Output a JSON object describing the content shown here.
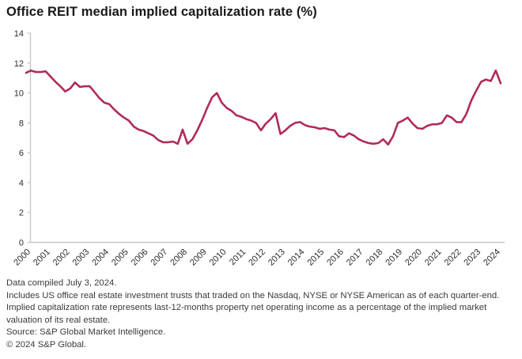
{
  "title": "Office REIT median implied capitalization rate (%)",
  "colors": {
    "line": "#b02a5c",
    "axis": "#c6c6c6",
    "tick_label": "#2d2d2d",
    "title_text": "#191919",
    "footnote_text": "#3a3a3a"
  },
  "footnotes": [
    "Data compiled July 3, 2024.",
    "Includes US office real estate investment trusts that traded on the Nasdaq, NYSE or NYSE American as of each quarter-end.",
    "Implied capitalization rate represents last-12-months property net operating income as a percentage of the implied market valuation of its real estate.",
    "Source: S&P Global Market Intelligence.",
    "© 2024 S&P Global."
  ],
  "chart_data": {
    "type": "line",
    "title": "Office REIT median implied capitalization rate (%)",
    "xlabel": "",
    "ylabel": "",
    "ylim": [
      0,
      14
    ],
    "y_ticks": [
      0,
      2,
      4,
      6,
      8,
      10,
      12,
      14
    ],
    "grid": false,
    "legend": "none",
    "x_tick_labels": [
      "2000",
      "2001",
      "2002",
      "2003",
      "2004",
      "2005",
      "2006",
      "2007",
      "2008",
      "2009",
      "2010",
      "2011",
      "2012",
      "2013",
      "2014",
      "2015",
      "2016",
      "2017",
      "2018",
      "2019",
      "2020",
      "2021",
      "2022",
      "2023",
      "2024"
    ],
    "frequency": "quarterly",
    "x_start": "2000 Q1",
    "x_end": "2024 Q2",
    "series": [
      {
        "name": "Office REIT median implied capitalization rate (%)",
        "values": [
          11.35,
          11.5,
          11.4,
          11.4,
          11.45,
          11.1,
          10.75,
          10.45,
          10.1,
          10.3,
          10.7,
          10.4,
          10.45,
          10.45,
          10.05,
          9.65,
          9.35,
          9.25,
          8.9,
          8.6,
          8.35,
          8.15,
          7.75,
          7.55,
          7.45,
          7.3,
          7.15,
          6.85,
          6.7,
          6.7,
          6.75,
          6.6,
          7.55,
          6.6,
          6.9,
          7.5,
          8.2,
          9.0,
          9.7,
          10.0,
          9.35,
          9.0,
          8.8,
          8.5,
          8.4,
          8.25,
          8.15,
          8.0,
          7.5,
          7.95,
          8.25,
          8.65,
          7.25,
          7.5,
          7.8,
          8.0,
          8.05,
          7.85,
          7.75,
          7.7,
          7.6,
          7.65,
          7.55,
          7.5,
          7.1,
          7.05,
          7.3,
          7.15,
          6.9,
          6.75,
          6.65,
          6.6,
          6.65,
          6.9,
          6.55,
          7.1,
          8.0,
          8.15,
          8.35,
          7.95,
          7.65,
          7.6,
          7.8,
          7.9,
          7.9,
          8.0,
          8.5,
          8.35,
          8.05,
          8.05,
          8.6,
          9.5,
          10.15,
          10.75,
          10.9,
          10.8,
          11.5,
          10.65
        ]
      }
    ]
  }
}
